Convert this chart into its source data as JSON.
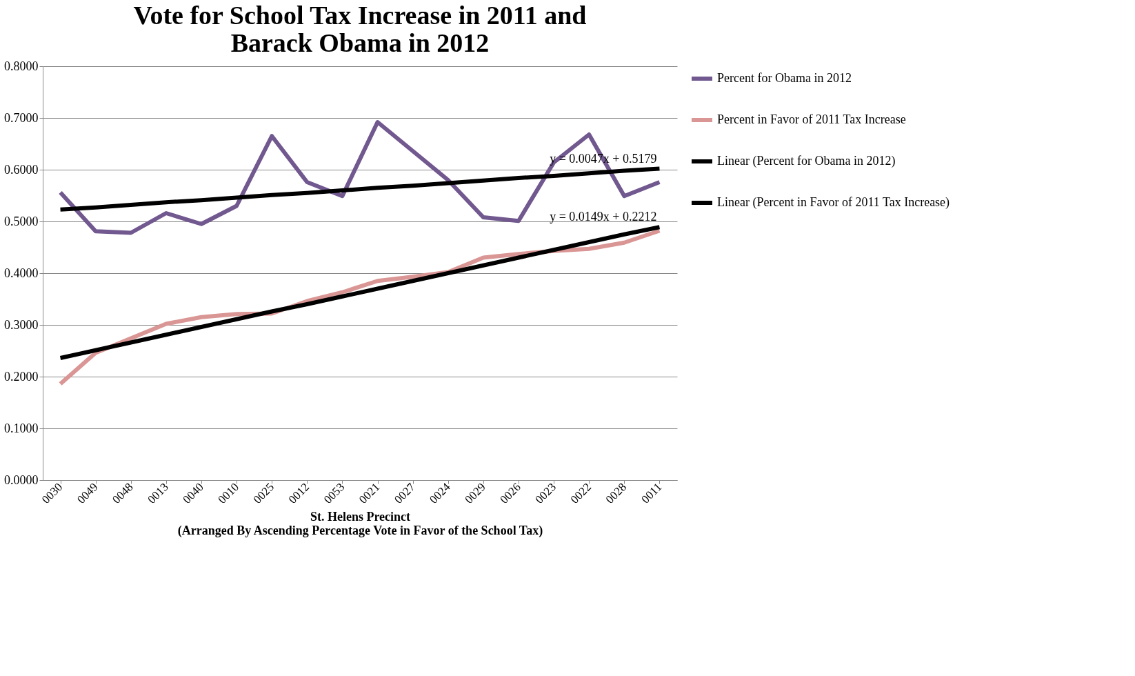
{
  "chart_data": {
    "type": "line",
    "title": "Vote for School Tax Increase in 2011 and\nBarack Obama in 2012",
    "xlabel": "St. Helens Precinct\n(Arranged By Ascending Percentage Vote in Favor of the School Tax)",
    "categories": [
      "0030",
      "0049",
      "0048",
      "0013",
      "0040",
      "0010",
      "0025",
      "0012",
      "0053",
      "0021",
      "0027",
      "0024",
      "0029",
      "0026",
      "0023",
      "0022",
      "0028",
      "0011"
    ],
    "series": [
      {
        "name": "Percent for Obama in 2012",
        "color": "#71588f",
        "values": [
          0.556,
          0.481,
          0.478,
          0.516,
          0.495,
          0.53,
          0.665,
          0.576,
          0.549,
          0.692,
          0.636,
          0.58,
          0.508,
          0.501,
          0.614,
          0.668,
          0.549,
          0.576
        ]
      },
      {
        "name": "Percent in Favor of 2011 Tax Increase",
        "color": "#d99694",
        "values": [
          0.186,
          0.246,
          0.274,
          0.302,
          0.315,
          0.321,
          0.322,
          0.346,
          0.363,
          0.385,
          0.393,
          0.402,
          0.43,
          0.437,
          0.443,
          0.447,
          0.459,
          0.482
        ]
      },
      {
        "name": "Linear (Percent for Obama in 2012)",
        "color": "#000000",
        "values": [
          0.523,
          0.527,
          0.532,
          0.537,
          0.541,
          0.546,
          0.551,
          0.555,
          0.56,
          0.565,
          0.569,
          0.574,
          0.579,
          0.584,
          0.588,
          0.593,
          0.598,
          0.602
        ]
      },
      {
        "name": "Linear (Percent in Favor of 2011 Tax Increase)",
        "color": "#000000",
        "values": [
          0.236,
          0.251,
          0.266,
          0.281,
          0.296,
          0.311,
          0.326,
          0.34,
          0.355,
          0.37,
          0.385,
          0.4,
          0.415,
          0.43,
          0.445,
          0.46,
          0.475,
          0.489
        ]
      }
    ],
    "annotations": [
      "y = 0.0047x + 0.5179",
      "y = 0.0149x + 0.2212"
    ],
    "ylim": [
      0,
      0.8
    ],
    "yticks": [
      {
        "value": 0,
        "label": "0.0000"
      },
      {
        "value": 0.1,
        "label": "0.1000"
      },
      {
        "value": 0.2,
        "label": "0.2000"
      },
      {
        "value": 0.3,
        "label": "0.3000"
      },
      {
        "value": 0.4,
        "label": "0.4000"
      },
      {
        "value": 0.5,
        "label": "0.5000"
      },
      {
        "value": 0.6,
        "label": "0.6000"
      },
      {
        "value": 0.7,
        "label": "0.7000"
      },
      {
        "value": 0.8,
        "label": "0.8000"
      }
    ],
    "grid": "y",
    "legend": "right"
  }
}
